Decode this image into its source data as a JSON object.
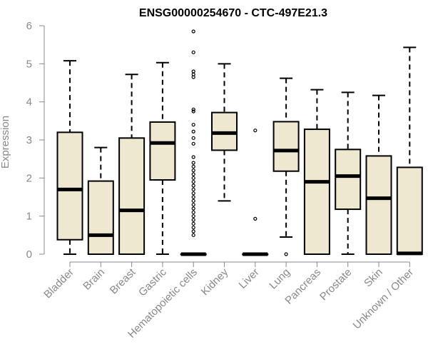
{
  "chart_data": {
    "type": "boxplot",
    "title": "ENSG00000254670 - CTC-497E21.3",
    "xlabel": "",
    "ylabel": "Expression",
    "ylim": [
      0,
      6
    ],
    "yticks": [
      0,
      1,
      2,
      3,
      4,
      5,
      6
    ],
    "box_fill": "#efe8d0",
    "categories": [
      "Bladder",
      "Brain",
      "Breast",
      "Gastric",
      "Hematopoietic cells",
      "Kidney",
      "Liver",
      "Lung",
      "Pancreas",
      "Prostate",
      "Skin",
      "Unknown / Other"
    ],
    "boxes": [
      {
        "min": 0.0,
        "q1": 0.38,
        "median": 1.7,
        "q3": 3.2,
        "max": 5.08,
        "outliers": []
      },
      {
        "min": 0.0,
        "q1": 0.0,
        "median": 0.5,
        "q3": 1.92,
        "max": 2.8,
        "outliers": []
      },
      {
        "min": 0.0,
        "q1": 0.0,
        "median": 1.15,
        "q3": 3.05,
        "max": 4.72,
        "outliers": []
      },
      {
        "min": 0.0,
        "q1": 1.95,
        "median": 2.92,
        "q3": 3.47,
        "max": 5.03,
        "outliers": []
      },
      {
        "min": 0.0,
        "q1": 0.0,
        "median": 0.0,
        "q3": 0.0,
        "max": 0.0,
        "outliers": [
          5.85,
          5.3,
          4.8,
          4.72,
          4.65,
          3.8,
          3.75,
          3.4,
          3.22,
          3.05,
          2.9,
          2.55,
          2.4,
          2.3,
          2.2,
          2.1,
          2.0,
          1.9,
          1.8,
          1.7,
          1.6,
          1.5,
          1.4,
          1.3,
          1.2,
          1.1,
          1.0,
          0.9,
          0.8,
          0.7,
          0.6,
          0.5
        ]
      },
      {
        "min": 1.4,
        "q1": 2.73,
        "median": 3.18,
        "q3": 3.72,
        "max": 5.0,
        "outliers": []
      },
      {
        "min": 0.0,
        "q1": 0.0,
        "median": 0.0,
        "q3": 0.0,
        "max": 0.0,
        "outliers": [
          3.25,
          0.93
        ]
      },
      {
        "min": 0.45,
        "q1": 2.18,
        "median": 2.72,
        "q3": 3.48,
        "max": 4.62,
        "outliers": [
          0.0
        ]
      },
      {
        "min": 0.0,
        "q1": 0.0,
        "median": 1.9,
        "q3": 3.28,
        "max": 4.32,
        "outliers": []
      },
      {
        "min": 0.0,
        "q1": 1.18,
        "median": 2.05,
        "q3": 2.75,
        "max": 4.25,
        "outliers": []
      },
      {
        "min": 0.0,
        "q1": 0.0,
        "median": 1.47,
        "q3": 2.58,
        "max": 4.17,
        "outliers": []
      },
      {
        "min": 0.0,
        "q1": 0.0,
        "median": 0.02,
        "q3": 2.28,
        "max": 5.43,
        "outliers": []
      }
    ]
  }
}
